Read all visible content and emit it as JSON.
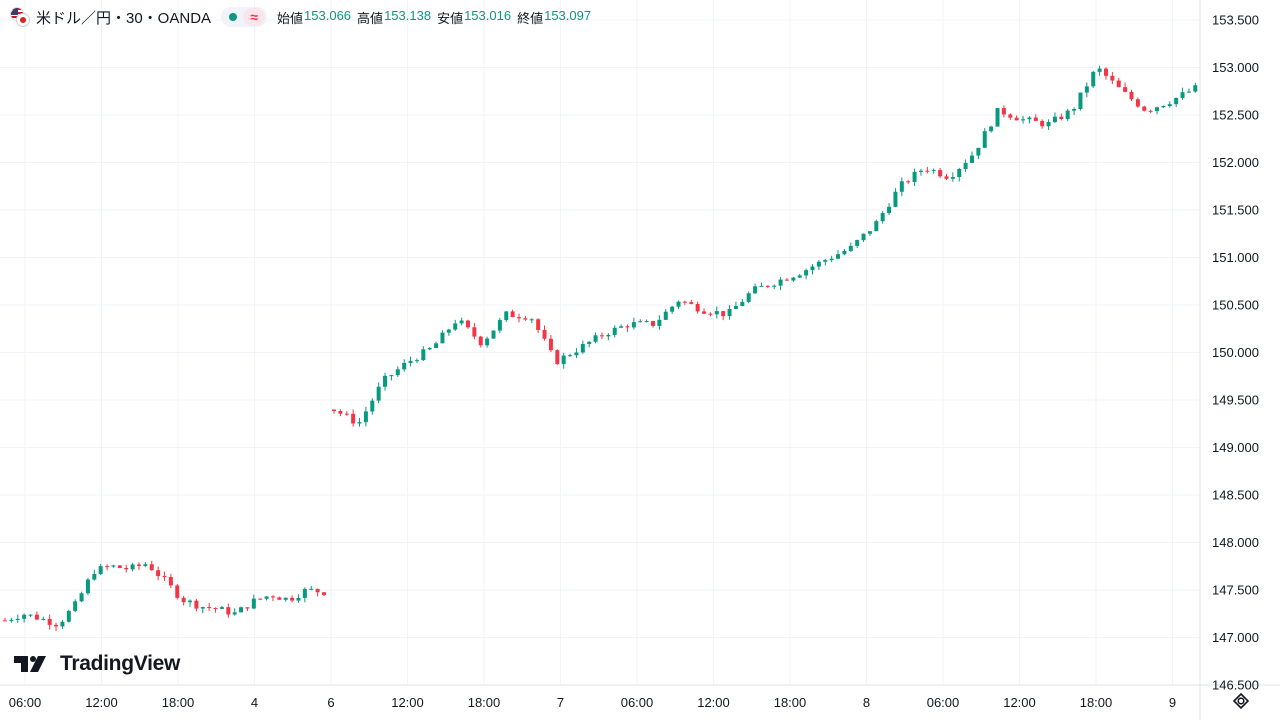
{
  "header": {
    "symbol": "米ドル／円・30・OANDA",
    "open_label": "始値",
    "open_value": "153.066",
    "high_label": "高値",
    "high_value": "153.138",
    "low_label": "安値",
    "low_value": "153.016",
    "close_label": "終値",
    "close_value": "153.097",
    "market_status_icon": "market-open-dot",
    "wave_icon": "approx-icon"
  },
  "branding": {
    "name": "TradingView",
    "logo_icon": "tradingview-logo-icon"
  },
  "colors": {
    "up": "#089981",
    "down": "#f23645",
    "grid": "#f0f3fa",
    "text": "#131722"
  },
  "chart_data": {
    "type": "candlestick",
    "ylim": [
      146.5,
      153.5
    ],
    "y_ticks": [
      "153.500",
      "153.000",
      "152.500",
      "152.000",
      "151.500",
      "151.000",
      "150.500",
      "150.000",
      "149.500",
      "149.000",
      "148.500",
      "148.000",
      "147.500",
      "147.000",
      "146.500"
    ],
    "x_ticks": [
      "06:00",
      "12:00",
      "18:00",
      "4",
      "6",
      "12:00",
      "18:00",
      "7",
      "06:00",
      "12:00",
      "18:00",
      "8",
      "06:00",
      "12:00",
      "18:00",
      "9"
    ],
    "segments": [
      {
        "name": "day-3-4",
        "start": 147.18,
        "keys": [
          147.18,
          147.25,
          147.2,
          147.14,
          147.35,
          147.7,
          147.75,
          147.72,
          147.78,
          147.6,
          147.4,
          147.33,
          147.3,
          147.25,
          147.38,
          147.45,
          147.4,
          147.5,
          147.48
        ]
      },
      {
        "name": "day-6-8",
        "start": 149.4,
        "keys": [
          149.4,
          149.25,
          149.7,
          149.9,
          150.05,
          150.35,
          150.1,
          150.4,
          150.38,
          149.9,
          150.05,
          150.2,
          150.3,
          150.3,
          150.55,
          150.45,
          150.4,
          150.65,
          150.75,
          150.85,
          150.98,
          151.1,
          151.35,
          151.75,
          151.95,
          151.85,
          152.1,
          152.55,
          152.45,
          152.4,
          152.55,
          153.0,
          152.75,
          152.55,
          152.65,
          152.78
        ]
      }
    ]
  }
}
